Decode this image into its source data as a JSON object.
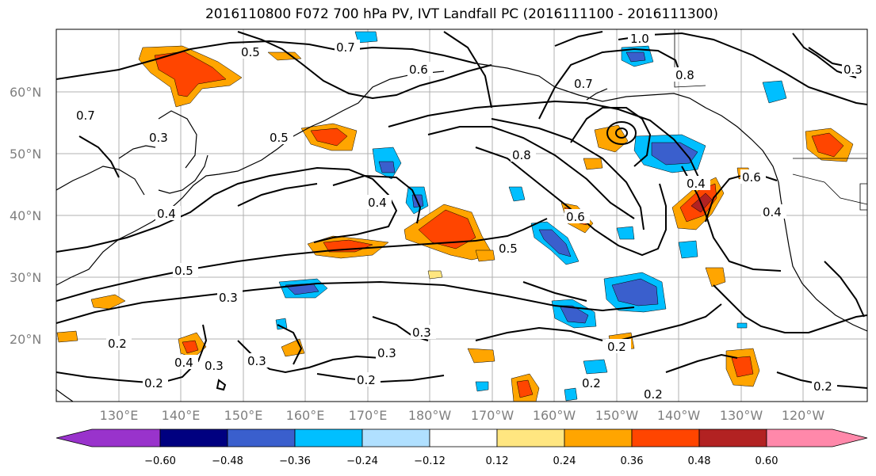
{
  "title": "2016110800 F072 700 hPa PV, IVT Landfall PC (2016111100 - 2016111300)",
  "lat_labels": [
    "60°N",
    "50°N",
    "40°N",
    "30°N",
    "20°N"
  ],
  "lon_labels": [
    "130°E",
    "140°E",
    "150°E",
    "160°E",
    "170°E",
    "180°W",
    "170°W",
    "160°W",
    "150°W",
    "140°W",
    "130°W",
    "120°W"
  ],
  "contour_labels": [
    "1.0",
    "0.8",
    "0.7",
    "0.6",
    "0.5",
    "0.4",
    "0.3",
    "0.2"
  ],
  "colorbar": {
    "tick_labels": [
      "−0.60",
      "−0.48",
      "−0.36",
      "−0.24",
      "−0.12",
      "0.12",
      "0.24",
      "0.36",
      "0.48",
      "0.60"
    ],
    "colors": [
      "#9933cc",
      "#000080",
      "#3a5fcd",
      "#00bfff",
      "#b0e0ff",
      "#ffffff",
      "#ffe680",
      "#ffa500",
      "#ff4500",
      "#b22222",
      "#ff88aa"
    ]
  },
  "fill_colors": {
    "pos_light": "#ffe680",
    "pos_mid": "#ffa500",
    "pos_strong": "#ff4500",
    "pos_max": "#b22222",
    "neg_light": "#b0e0ff",
    "neg_mid": "#00bfff",
    "neg_strong": "#3a5fcd"
  }
}
